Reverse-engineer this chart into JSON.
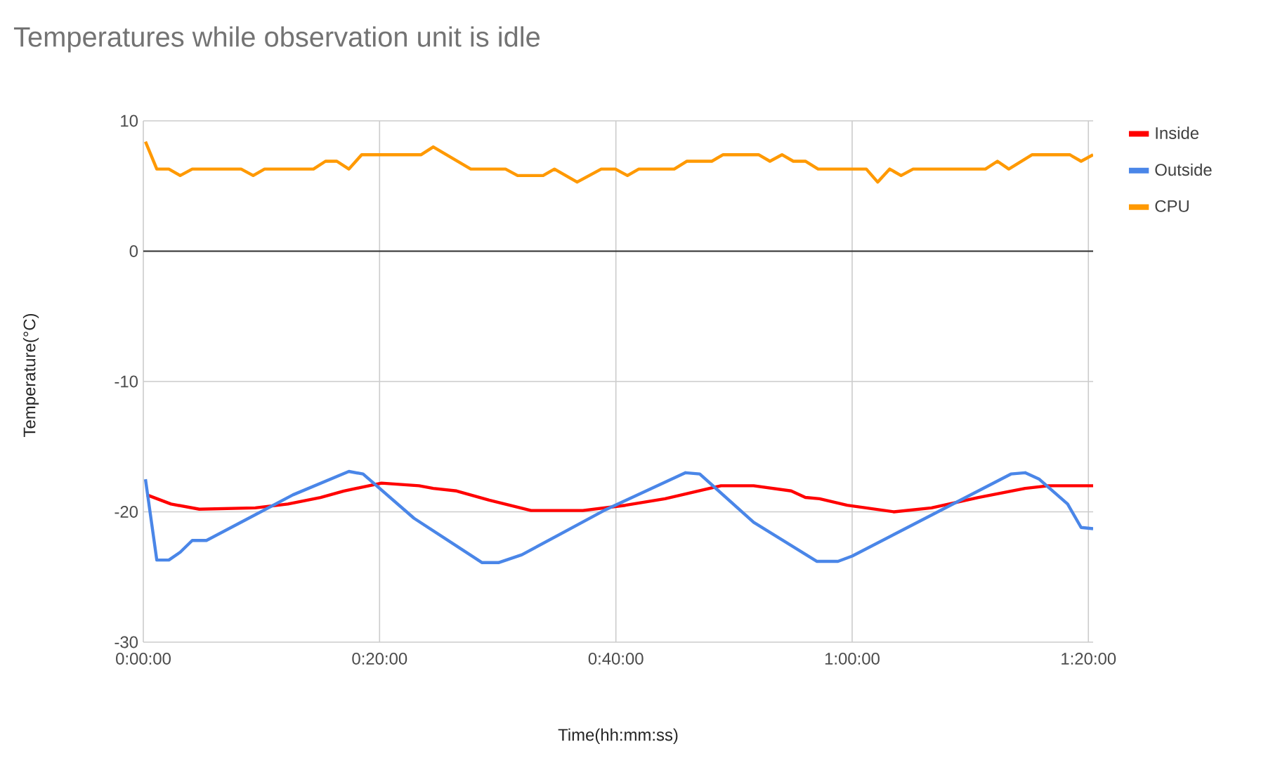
{
  "chart_data": {
    "type": "line",
    "title": "Temperatures while observation unit is idle",
    "xlabel": "Time(hh:mm:ss)",
    "ylabel": "Temperature(°C)",
    "xlim": [
      0,
      1.34
    ],
    "xticks": [
      {
        "value": 0,
        "label": "0:00:00"
      },
      {
        "value": 0.3333,
        "label": "0:20:00"
      },
      {
        "value": 0.6667,
        "label": "0:40:00"
      },
      {
        "value": 1,
        "label": "1:00:00"
      },
      {
        "value": 1.3333,
        "label": "1:20:00"
      }
    ],
    "ylim": [
      -30,
      10
    ],
    "yticks": [
      -30,
      -20,
      -10,
      0,
      10
    ],
    "grid": true,
    "legend": "top right",
    "marker": "none",
    "line_style": "solid",
    "ref_lines": [
      {
        "axis": "y",
        "value": 0,
        "color": "#333333"
      }
    ],
    "series": [
      {
        "name": "Inside",
        "color": "#ff0000",
        "x": [
          0.005,
          0.039,
          0.079,
          0.158,
          0.204,
          0.25,
          0.283,
          0.336,
          0.389,
          0.409,
          0.442,
          0.488,
          0.547,
          0.62,
          0.68,
          0.736,
          0.815,
          0.861,
          0.914,
          0.934,
          0.954,
          0.993,
          1.059,
          1.112,
          1.178,
          1.244,
          1.277,
          1.34
        ],
        "values": [
          -18.7,
          -19.4,
          -19.8,
          -19.7,
          -19.4,
          -18.9,
          -18.4,
          -17.8,
          -18.0,
          -18.2,
          -18.4,
          -19.1,
          -19.9,
          -19.9,
          -19.5,
          -19.0,
          -18.0,
          -18.0,
          -18.4,
          -18.9,
          -19.0,
          -19.5,
          -20.0,
          -19.7,
          -18.9,
          -18.2,
          -18.0,
          -18.0
        ]
      },
      {
        "name": "Outside",
        "color": "#4a86e8",
        "x": [
          0.003,
          0.019,
          0.036,
          0.052,
          0.069,
          0.089,
          0.138,
          0.211,
          0.29,
          0.31,
          0.382,
          0.478,
          0.501,
          0.534,
          0.65,
          0.765,
          0.785,
          0.861,
          0.95,
          0.98,
          1.0,
          1.224,
          1.244,
          1.264,
          1.304,
          1.323,
          1.34
        ],
        "values": [
          -17.5,
          -23.7,
          -23.7,
          -23.1,
          -22.2,
          -22.2,
          -20.8,
          -18.7,
          -16.9,
          -17.1,
          -20.5,
          -23.9,
          -23.9,
          -23.3,
          -19.9,
          -17.0,
          -17.1,
          -20.8,
          -23.8,
          -23.8,
          -23.4,
          -17.1,
          -17.0,
          -17.5,
          -19.4,
          -21.2,
          -21.3
        ]
      },
      {
        "name": "CPU",
        "color": "#ff9900",
        "x": [
          0.003,
          0.019,
          0.036,
          0.052,
          0.069,
          0.138,
          0.155,
          0.171,
          0.24,
          0.257,
          0.273,
          0.29,
          0.308,
          0.392,
          0.409,
          0.462,
          0.511,
          0.528,
          0.564,
          0.58,
          0.612,
          0.646,
          0.666,
          0.683,
          0.699,
          0.749,
          0.767,
          0.802,
          0.818,
          0.868,
          0.884,
          0.901,
          0.917,
          0.934,
          0.952,
          1.02,
          1.036,
          1.053,
          1.069,
          1.086,
          1.188,
          1.205,
          1.221,
          1.254,
          1.307,
          1.323,
          1.34
        ],
        "values": [
          8.4,
          6.3,
          6.3,
          5.8,
          6.3,
          6.3,
          5.8,
          6.3,
          6.3,
          6.9,
          6.9,
          6.3,
          7.4,
          7.4,
          8.0,
          6.3,
          6.3,
          5.8,
          5.8,
          6.3,
          5.3,
          6.3,
          6.3,
          5.8,
          6.3,
          6.3,
          6.9,
          6.9,
          7.4,
          7.4,
          6.9,
          7.4,
          6.9,
          6.9,
          6.3,
          6.3,
          5.3,
          6.3,
          5.8,
          6.3,
          6.3,
          6.9,
          6.3,
          7.4,
          7.4,
          6.9,
          7.4
        ]
      }
    ]
  }
}
